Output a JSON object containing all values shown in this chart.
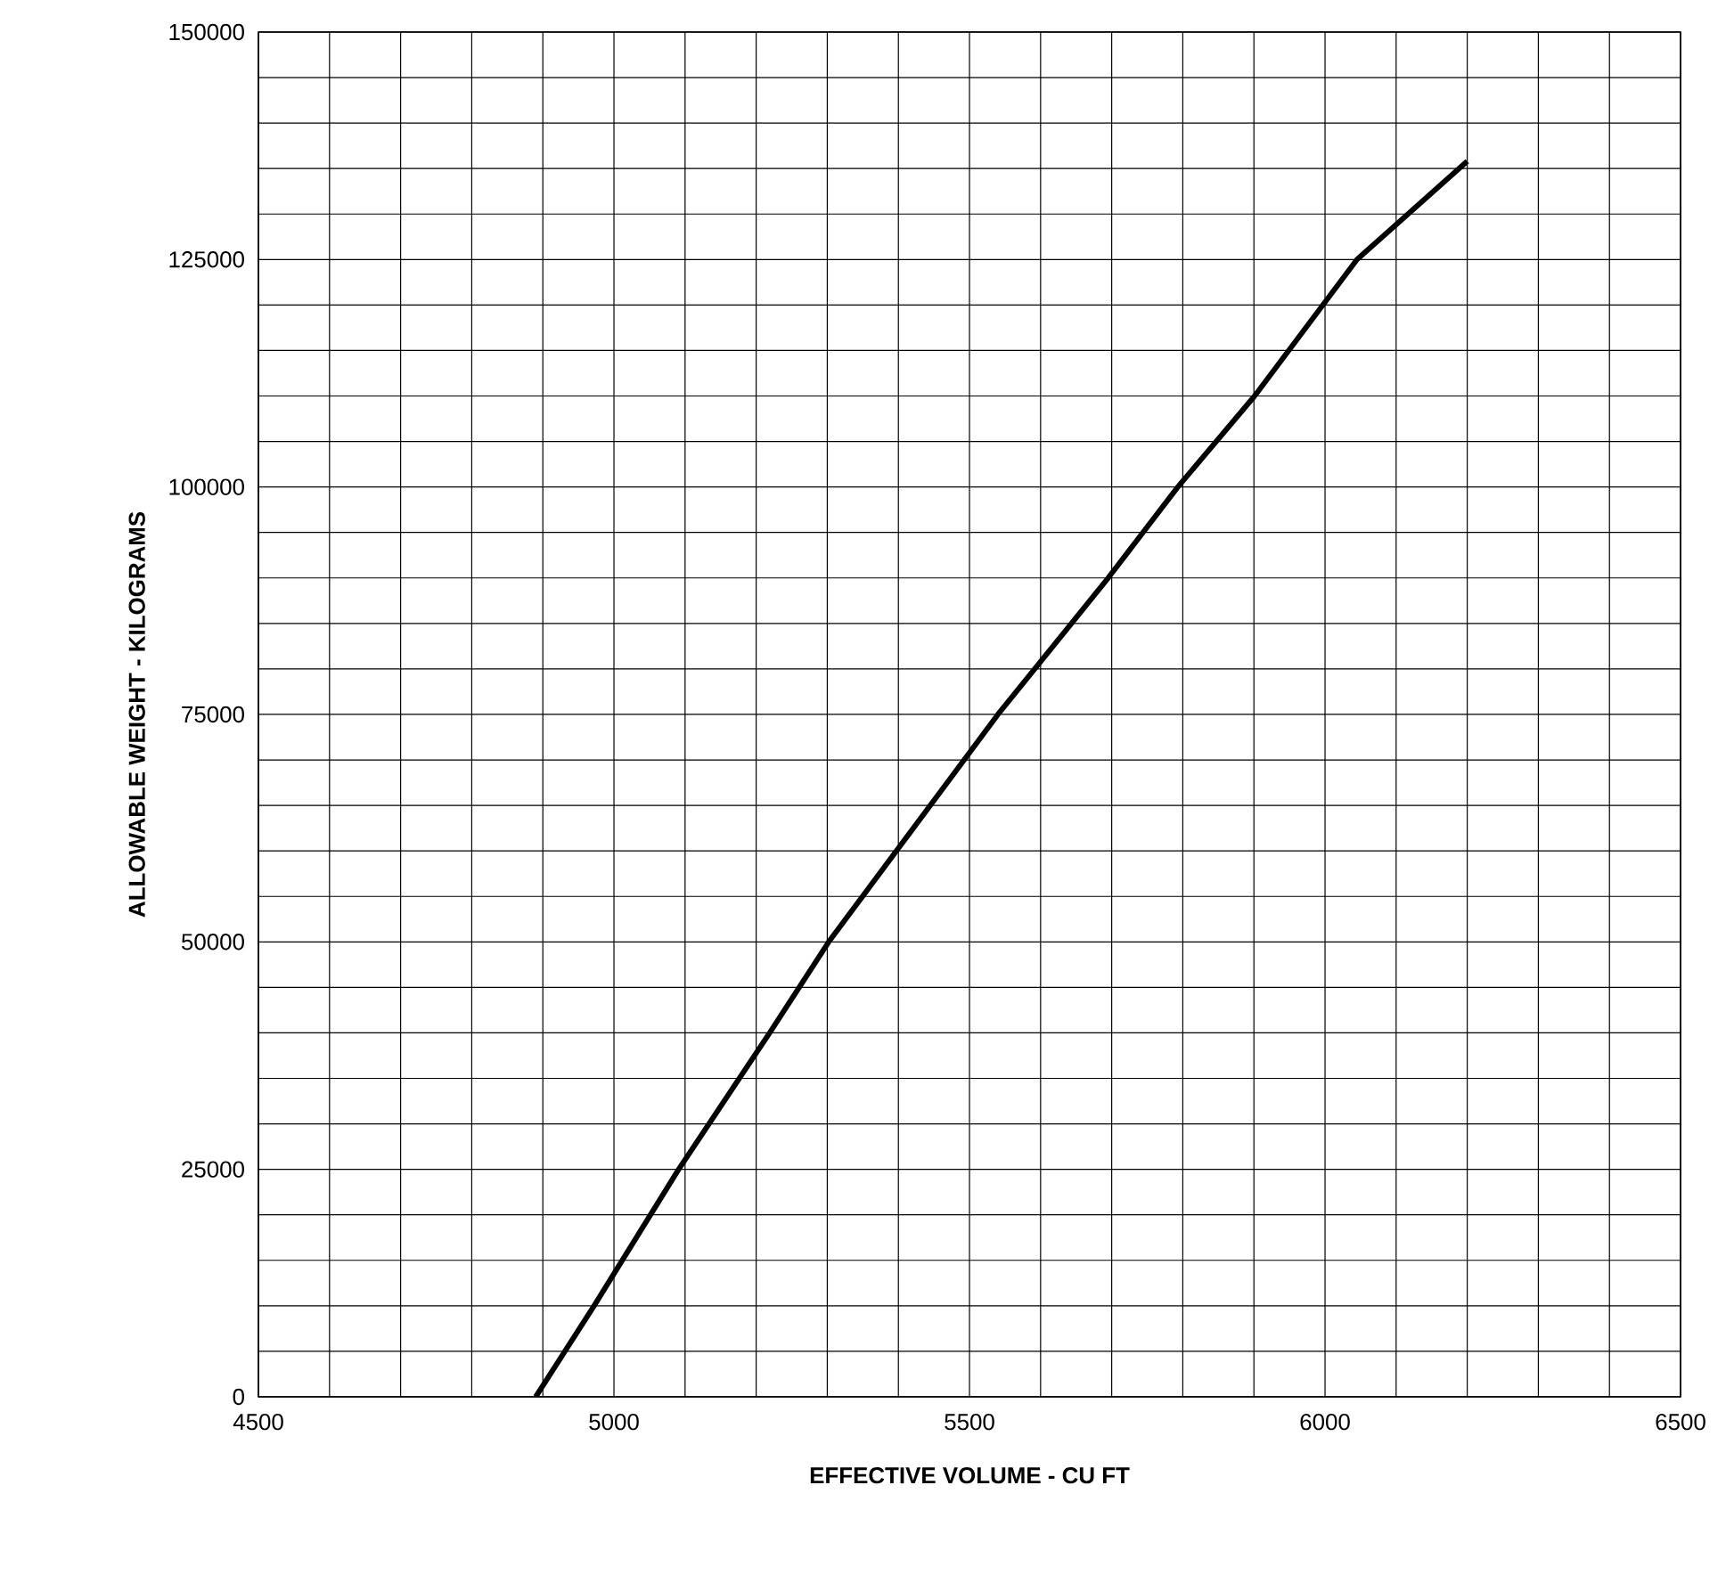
{
  "chart_data": {
    "type": "line",
    "xlabel": "EFFECTIVE VOLUME - CU FT",
    "ylabel": "ALLOWABLE WEIGHT - KILOGRAMS",
    "x": [
      4890,
      4972,
      5091,
      5219,
      5302,
      5540,
      5695,
      5793,
      5901,
      6045,
      6200
    ],
    "series": [
      {
        "color": "#000000",
        "values": [
          0,
          10000,
          25000,
          40000,
          50000,
          75000,
          90000,
          100000,
          110000,
          125000,
          135800
        ]
      }
    ],
    "xlim": [
      4500,
      6500
    ],
    "ylim": [
      0,
      150000
    ],
    "xticks": [
      4500,
      {
        "value": 4600,
        "label": null
      },
      {
        "value": 4700,
        "label": null
      },
      {
        "value": 4800,
        "label": null
      },
      {
        "value": 4900,
        "label": null
      },
      5000,
      {
        "value": 5100,
        "label": null
      },
      {
        "value": 5200,
        "label": null
      },
      {
        "value": 5300,
        "label": null
      },
      {
        "value": 5400,
        "label": null
      },
      5500,
      {
        "value": 5600,
        "label": null
      },
      {
        "value": 5700,
        "label": null
      },
      {
        "value": 5800,
        "label": null
      },
      {
        "value": 5900,
        "label": null
      },
      6000,
      {
        "value": 6100,
        "label": null
      },
      {
        "value": 6200,
        "label": null
      },
      {
        "value": 6300,
        "label": null
      },
      {
        "value": 6400,
        "label": null
      },
      6500
    ],
    "yticks": [
      0,
      {
        "value": 5000,
        "label": null
      },
      {
        "value": 10000,
        "label": null
      },
      {
        "value": 15000,
        "label": null
      },
      {
        "value": 20000,
        "label": null
      },
      25000,
      {
        "value": 30000,
        "label": null
      },
      {
        "value": 35000,
        "label": null
      },
      {
        "value": 40000,
        "label": null
      },
      {
        "value": 45000,
        "label": null
      },
      50000,
      {
        "value": 55000,
        "label": null
      },
      {
        "value": 60000,
        "label": null
      },
      {
        "value": 65000,
        "label": null
      },
      {
        "value": 70000,
        "label": null
      },
      75000,
      {
        "value": 80000,
        "label": null
      },
      {
        "value": 85000,
        "label": null
      },
      {
        "value": 90000,
        "label": null
      },
      {
        "value": 95000,
        "label": null
      },
      100000,
      {
        "value": 105000,
        "label": null
      },
      {
        "value": 110000,
        "label": null
      },
      {
        "value": 115000,
        "label": null
      },
      {
        "value": 120000,
        "label": null
      },
      125000,
      {
        "value": 130000,
        "label": null
      },
      {
        "value": 135000,
        "label": null
      },
      {
        "value": 140000,
        "label": null
      },
      {
        "value": 145000,
        "label": null
      },
      150000
    ],
    "grid": true,
    "marker": "none",
    "line_style": "solid"
  }
}
